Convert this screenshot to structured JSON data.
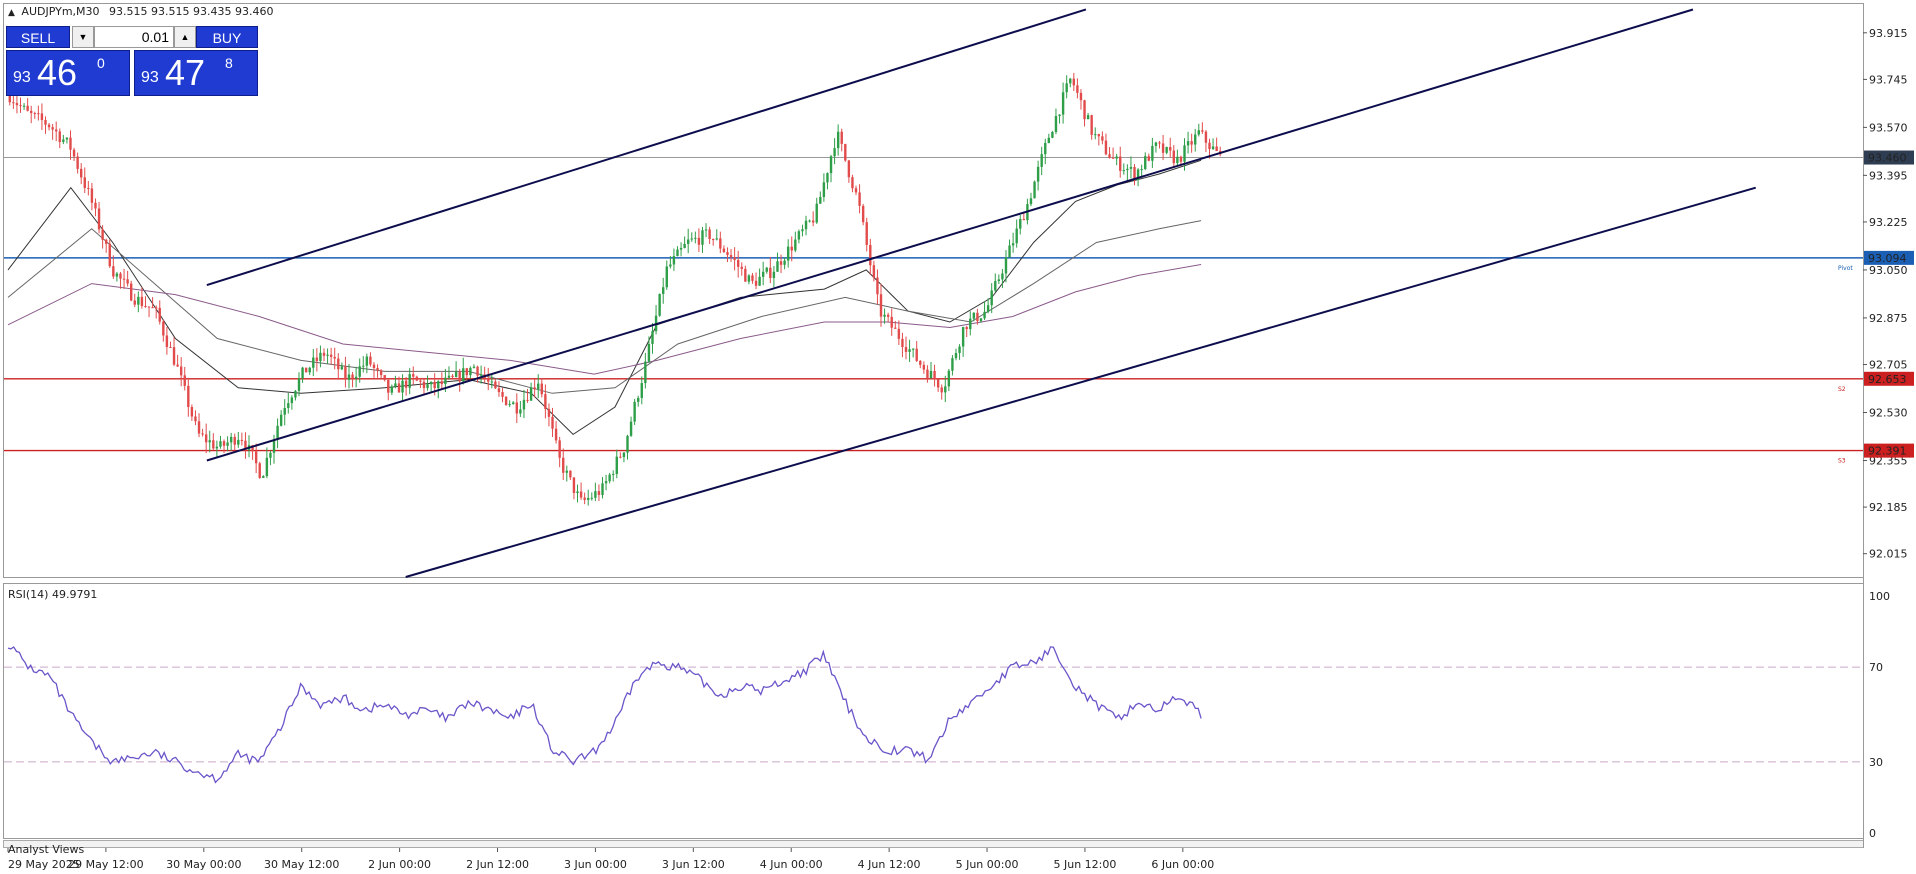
{
  "header": {
    "arrow": "▲",
    "symbol": "AUDJPYm,M30",
    "ohlc": "93.515 93.515 93.435 93.460"
  },
  "trade_panel": {
    "sell_label": "SELL",
    "buy_label": "BUY",
    "lot": "0.01",
    "bid_prefix": "93",
    "bid_main": "46",
    "bid_sup": "0",
    "ask_prefix": "93",
    "ask_main": "47",
    "ask_sup": "8"
  },
  "indicator": {
    "label": "RSI(14) 49.9791"
  },
  "footer": {
    "label": "Analyst Views"
  },
  "colors": {
    "bull": "#2e9e48",
    "bear": "#e24b4b",
    "pivot": "#1a5fb4",
    "support": "#cc2020",
    "channel": "#0d0d4d",
    "rsi": "#6b55c9",
    "last": "#2f3d52"
  },
  "chart_data": {
    "type": "candlestick",
    "symbol": "AUDJPYm",
    "timeframe": "M30",
    "price_axis": {
      "ylim": [
        91.93,
        94.02
      ],
      "ticks": [
        "93.915",
        "93.745",
        "93.570",
        "93.395",
        "93.225",
        "93.050",
        "92.875",
        "92.705",
        "92.530",
        "92.355",
        "92.185",
        "92.015"
      ]
    },
    "time_axis": {
      "labels": [
        "29 May 2025",
        "29 May 12:00",
        "30 May 00:00",
        "30 May 12:00",
        "2 Jun 00:00",
        "2 Jun 12:00",
        "3 Jun 00:00",
        "3 Jun 12:00",
        "4 Jun 00:00",
        "4 Jun 12:00",
        "5 Jun 00:00",
        "5 Jun 12:00",
        "6 Jun 00:00"
      ]
    },
    "last_price": {
      "value": 93.46,
      "label": "93.460"
    },
    "levels": [
      {
        "name": "Pivot",
        "value": 93.094,
        "label": "93.094",
        "color": "#1a5fb4"
      },
      {
        "name": "S2",
        "value": 92.653,
        "label": "92.653",
        "color": "#cc2020"
      },
      {
        "name": "S3",
        "value": 92.391,
        "label": "92.391",
        "color": "#cc2020"
      }
    ],
    "channel_lines": [
      {
        "from": [
          9.5,
          92.995
        ],
        "to": [
          51.5,
          94.0
        ]
      },
      {
        "from": [
          9.5,
          92.355
        ],
        "to": [
          80.5,
          94.0
        ]
      },
      {
        "from": [
          19.0,
          91.93
        ],
        "to": [
          83.5,
          93.35
        ]
      }
    ],
    "price_path": [
      [
        0,
        93.7
      ],
      [
        1,
        93.62
      ],
      [
        2,
        93.58
      ],
      [
        3,
        93.5
      ],
      [
        4,
        93.3
      ],
      [
        5,
        93.05
      ],
      [
        6,
        92.95
      ],
      [
        7,
        92.9
      ],
      [
        8,
        92.7
      ],
      [
        9,
        92.45
      ],
      [
        10,
        92.4
      ],
      [
        11,
        92.45
      ],
      [
        12,
        92.3
      ],
      [
        13,
        92.55
      ],
      [
        14,
        92.68
      ],
      [
        15,
        92.75
      ],
      [
        16,
        92.65
      ],
      [
        17,
        92.72
      ],
      [
        18,
        92.6
      ],
      [
        19,
        92.65
      ],
      [
        20,
        92.62
      ],
      [
        21,
        92.65
      ],
      [
        22,
        92.7
      ],
      [
        23,
        92.6
      ],
      [
        24,
        92.55
      ],
      [
        25,
        92.65
      ],
      [
        26,
        92.35
      ],
      [
        27,
        92.2
      ],
      [
        28,
        92.25
      ],
      [
        29,
        92.4
      ],
      [
        30,
        92.7
      ],
      [
        31,
        93.05
      ],
      [
        32,
        93.15
      ],
      [
        33,
        93.18
      ],
      [
        34,
        93.1
      ],
      [
        35,
        93.0
      ],
      [
        36,
        93.05
      ],
      [
        37,
        93.15
      ],
      [
        38,
        93.25
      ],
      [
        39,
        93.55
      ],
      [
        40,
        93.3
      ],
      [
        41,
        92.9
      ],
      [
        42,
        92.8
      ],
      [
        43,
        92.7
      ],
      [
        44,
        92.62
      ],
      [
        45,
        92.85
      ],
      [
        46,
        92.9
      ],
      [
        47,
        93.1
      ],
      [
        48,
        93.3
      ],
      [
        49,
        93.55
      ],
      [
        50,
        93.75
      ],
      [
        51,
        93.55
      ],
      [
        52,
        93.45
      ],
      [
        53,
        93.4
      ],
      [
        54,
        93.5
      ],
      [
        55,
        93.45
      ],
      [
        56,
        93.55
      ],
      [
        57,
        93.46
      ]
    ],
    "moving_averages": [
      {
        "points": [
          [
            0,
            93.05
          ],
          [
            3,
            93.35
          ],
          [
            5,
            93.15
          ],
          [
            8,
            92.8
          ],
          [
            11,
            92.62
          ],
          [
            14,
            92.6
          ],
          [
            18,
            92.62
          ],
          [
            22,
            92.65
          ],
          [
            25,
            92.6
          ],
          [
            27,
            92.45
          ],
          [
            29,
            92.55
          ],
          [
            31,
            92.85
          ],
          [
            35,
            92.95
          ],
          [
            39,
            92.98
          ],
          [
            41,
            93.05
          ],
          [
            43,
            92.9
          ],
          [
            45,
            92.86
          ],
          [
            47,
            92.95
          ],
          [
            49,
            93.15
          ],
          [
            51,
            93.3
          ],
          [
            53,
            93.36
          ],
          [
            55,
            93.4
          ],
          [
            57,
            93.45
          ]
        ]
      },
      {
        "points": [
          [
            0,
            92.95
          ],
          [
            4,
            93.2
          ],
          [
            7,
            93.0
          ],
          [
            10,
            92.8
          ],
          [
            14,
            92.72
          ],
          [
            18,
            92.68
          ],
          [
            22,
            92.68
          ],
          [
            26,
            92.6
          ],
          [
            29,
            92.62
          ],
          [
            32,
            92.78
          ],
          [
            36,
            92.88
          ],
          [
            40,
            92.95
          ],
          [
            43,
            92.9
          ],
          [
            46,
            92.86
          ],
          [
            49,
            93.0
          ],
          [
            52,
            93.15
          ],
          [
            55,
            93.2
          ],
          [
            57,
            93.23
          ]
        ]
      },
      {
        "points": [
          [
            0,
            92.85
          ],
          [
            4,
            93.0
          ],
          [
            8,
            92.96
          ],
          [
            12,
            92.88
          ],
          [
            16,
            92.78
          ],
          [
            20,
            92.75
          ],
          [
            24,
            92.72
          ],
          [
            28,
            92.67
          ],
          [
            31,
            92.72
          ],
          [
            35,
            92.8
          ],
          [
            39,
            92.86
          ],
          [
            42,
            92.86
          ],
          [
            45,
            92.84
          ],
          [
            48,
            92.88
          ],
          [
            51,
            92.97
          ],
          [
            54,
            93.03
          ],
          [
            57,
            93.07
          ]
        ]
      }
    ],
    "rsi": {
      "name": "RSI(14)",
      "value": 49.9791,
      "ylim": [
        0,
        100
      ],
      "ticks": [
        "100",
        "70",
        "30",
        "0"
      ],
      "levels": [
        70,
        30
      ],
      "path": [
        [
          0,
          80
        ],
        [
          1,
          70
        ],
        [
          2,
          66
        ],
        [
          3,
          50
        ],
        [
          4,
          38
        ],
        [
          5,
          30
        ],
        [
          6,
          32
        ],
        [
          7,
          34
        ],
        [
          8,
          30
        ],
        [
          9,
          26
        ],
        [
          10,
          23
        ],
        [
          11,
          33
        ],
        [
          12,
          30
        ],
        [
          13,
          44
        ],
        [
          14,
          62
        ],
        [
          15,
          54
        ],
        [
          16,
          57
        ],
        [
          17,
          52
        ],
        [
          18,
          54
        ],
        [
          19,
          50
        ],
        [
          20,
          52
        ],
        [
          21,
          48
        ],
        [
          22,
          55
        ],
        [
          23,
          52
        ],
        [
          24,
          48
        ],
        [
          25,
          55
        ],
        [
          26,
          35
        ],
        [
          27,
          30
        ],
        [
          28,
          34
        ],
        [
          29,
          46
        ],
        [
          30,
          65
        ],
        [
          31,
          72
        ],
        [
          32,
          70
        ],
        [
          33,
          65
        ],
        [
          34,
          58
        ],
        [
          35,
          62
        ],
        [
          36,
          60
        ],
        [
          37,
          64
        ],
        [
          38,
          68
        ],
        [
          39,
          75
        ],
        [
          40,
          55
        ],
        [
          41,
          40
        ],
        [
          42,
          35
        ],
        [
          43,
          35
        ],
        [
          44,
          31
        ],
        [
          45,
          48
        ],
        [
          46,
          55
        ],
        [
          47,
          62
        ],
        [
          48,
          70
        ],
        [
          49,
          72
        ],
        [
          50,
          78
        ],
        [
          51,
          62
        ],
        [
          52,
          54
        ],
        [
          53,
          48
        ],
        [
          54,
          55
        ],
        [
          55,
          52
        ],
        [
          56,
          58
        ],
        [
          57,
          50
        ]
      ]
    }
  }
}
